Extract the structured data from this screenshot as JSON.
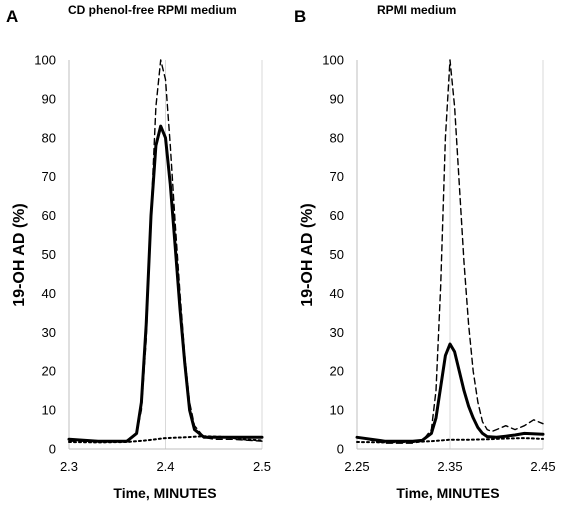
{
  "chart_data": [
    {
      "type": "line",
      "panel_letter": "A",
      "title": "CD phenol-free RPMI medium",
      "xlabel": "Time, MINUTES",
      "ylabel": "19-OH AD (%)",
      "xlim": [
        2.3,
        2.5
      ],
      "ylim": [
        0,
        100
      ],
      "xticks": [
        "2.3",
        "2.4",
        "2.5"
      ],
      "yticks": [
        "0",
        "10",
        "20",
        "30",
        "40",
        "50",
        "60",
        "70",
        "80",
        "90",
        "100"
      ],
      "grid": "vertical",
      "series": [
        {
          "style": "dashed",
          "x": [
            2.3,
            2.33,
            2.36,
            2.37,
            2.375,
            2.38,
            2.385,
            2.39,
            2.395,
            2.4,
            2.405,
            2.41,
            2.415,
            2.42,
            2.425,
            2.43,
            2.44,
            2.45,
            2.47,
            2.5
          ],
          "y": [
            2,
            2,
            2,
            4,
            10,
            28,
            60,
            88,
            100,
            95,
            78,
            58,
            40,
            24,
            12,
            6,
            3,
            2.5,
            2.5,
            2
          ]
        },
        {
          "style": "solid",
          "x": [
            2.3,
            2.33,
            2.36,
            2.37,
            2.375,
            2.38,
            2.385,
            2.39,
            2.395,
            2.4,
            2.405,
            2.41,
            2.415,
            2.42,
            2.425,
            2.43,
            2.44,
            2.45,
            2.47,
            2.5
          ],
          "y": [
            2.5,
            2,
            2,
            4,
            12,
            32,
            60,
            78,
            83,
            80,
            68,
            52,
            36,
            22,
            10,
            5,
            3,
            3,
            3,
            3
          ]
        },
        {
          "style": "dotted",
          "x": [
            2.3,
            2.33,
            2.36,
            2.38,
            2.4,
            2.42,
            2.44,
            2.46,
            2.48,
            2.5
          ],
          "y": [
            1.8,
            1.7,
            1.8,
            2.2,
            2.8,
            3,
            3.3,
            3.1,
            2.5,
            2.2
          ]
        }
      ]
    },
    {
      "type": "line",
      "panel_letter": "B",
      "title": "RPMI medium",
      "xlabel": "Time, MINUTES",
      "ylabel": "19-OH AD (%)",
      "xlim": [
        2.25,
        2.45
      ],
      "ylim": [
        0,
        100
      ],
      "xticks": [
        "2.25",
        "2.35",
        "2.45"
      ],
      "yticks": [
        "0",
        "10",
        "20",
        "30",
        "40",
        "50",
        "60",
        "70",
        "80",
        "90",
        "100"
      ],
      "grid": "vertical",
      "series": [
        {
          "style": "dashed",
          "x": [
            2.25,
            2.28,
            2.31,
            2.32,
            2.33,
            2.335,
            2.34,
            2.345,
            2.35,
            2.355,
            2.36,
            2.365,
            2.37,
            2.375,
            2.38,
            2.385,
            2.39,
            2.395,
            2.4,
            2.41,
            2.42,
            2.43,
            2.44,
            2.45
          ],
          "y": [
            3,
            1.5,
            1.5,
            2,
            5,
            15,
            42,
            80,
            100,
            88,
            68,
            48,
            32,
            20,
            12,
            7,
            5,
            4.5,
            5,
            6,
            5,
            6,
            7.5,
            6.5
          ]
        },
        {
          "style": "solid",
          "x": [
            2.25,
            2.28,
            2.31,
            2.32,
            2.33,
            2.335,
            2.34,
            2.345,
            2.35,
            2.355,
            2.36,
            2.365,
            2.37,
            2.375,
            2.38,
            2.385,
            2.39,
            2.4,
            2.41,
            2.42,
            2.43,
            2.45
          ],
          "y": [
            3,
            2,
            2,
            2.2,
            4,
            8,
            16,
            24,
            27,
            25,
            20,
            15,
            11,
            8,
            5.5,
            4,
            3.2,
            3,
            3.3,
            3.6,
            4,
            3.8
          ]
        },
        {
          "style": "dotted",
          "x": [
            2.25,
            2.28,
            2.31,
            2.33,
            2.35,
            2.37,
            2.39,
            2.41,
            2.43,
            2.45
          ],
          "y": [
            1.8,
            1.7,
            1.8,
            2,
            2.4,
            2.4,
            2.5,
            2.7,
            2.8,
            2.6
          ]
        }
      ]
    }
  ]
}
